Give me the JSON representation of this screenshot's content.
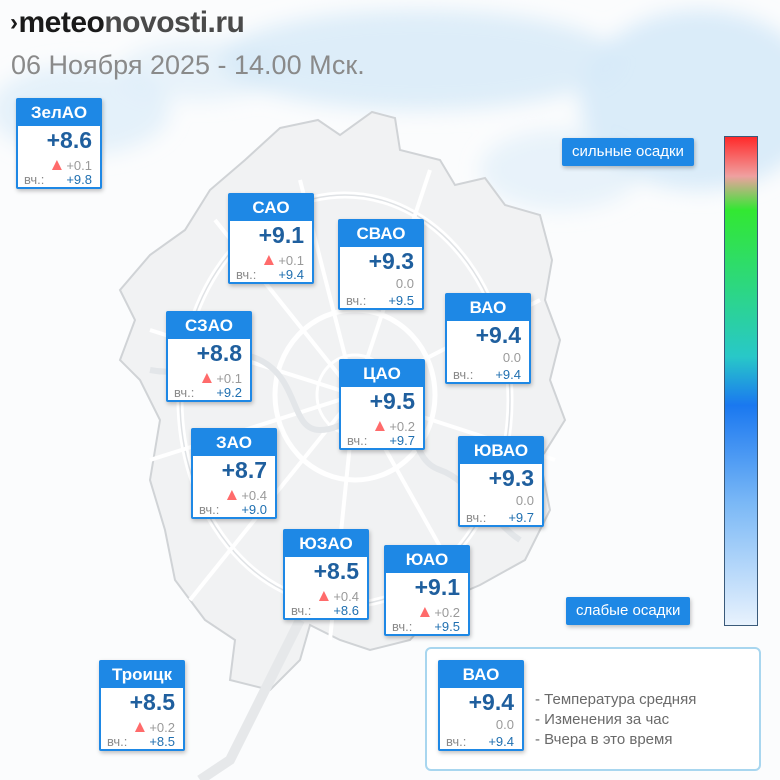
{
  "header": {
    "logo_mark": "›",
    "logo_part1": "meteo",
    "logo_part2": "novosti",
    "logo_part3": ".ru",
    "subtitle": "06 Ноября 2025 - 14.00 Мск."
  },
  "labels": {
    "yesterday_prefix": "вч.:"
  },
  "districts": [
    {
      "name": "ЗелАО",
      "temp": "+8.6",
      "change": "+0.1",
      "trend": "up",
      "yesterday": "+9.8"
    },
    {
      "name": "САО",
      "temp": "+9.1",
      "change": "+0.1",
      "trend": "up",
      "yesterday": "+9.4"
    },
    {
      "name": "СВАО",
      "temp": "+9.3",
      "change": "0.0",
      "trend": "none",
      "yesterday": "+9.5"
    },
    {
      "name": "ВАО",
      "temp": "+9.4",
      "change": "0.0",
      "trend": "none",
      "yesterday": "+9.4"
    },
    {
      "name": "СЗАО",
      "temp": "+8.8",
      "change": "+0.1",
      "trend": "up",
      "yesterday": "+9.2"
    },
    {
      "name": "ЦАО",
      "temp": "+9.5",
      "change": "+0.2",
      "trend": "up",
      "yesterday": "+9.7"
    },
    {
      "name": "ЗАО",
      "temp": "+8.7",
      "change": "+0.4",
      "trend": "up",
      "yesterday": "+9.0"
    },
    {
      "name": "ЮВАО",
      "temp": "+9.3",
      "change": "0.0",
      "trend": "none",
      "yesterday": "+9.7"
    },
    {
      "name": "ЮЗАО",
      "temp": "+8.5",
      "change": "+0.4",
      "trend": "up",
      "yesterday": "+8.6"
    },
    {
      "name": "ЮАО",
      "temp": "+9.1",
      "change": "+0.2",
      "trend": "up",
      "yesterday": "+9.5"
    },
    {
      "name": "Троицк",
      "temp": "+8.5",
      "change": "+0.2",
      "trend": "up",
      "yesterday": "+8.5"
    }
  ],
  "precipitation_scale": {
    "top_label": "сильные осадки",
    "bottom_label": "слабые осадки",
    "colors": [
      "#ff2a2a",
      "#32e832",
      "#1a78f0",
      "#e8f2fd"
    ]
  },
  "legend": {
    "sample": {
      "name": "ВАО",
      "temp": "+9.4",
      "change": "0.0",
      "trend": "none",
      "yesterday": "+9.4"
    },
    "lines": [
      "- Температура средняя",
      "- Изменения за час",
      "- Вчера в это время"
    ]
  },
  "colors": {
    "card_accent": "#1e88e5",
    "temp_text": "#1f5f9e",
    "trend_up": "#ff6b6b"
  }
}
